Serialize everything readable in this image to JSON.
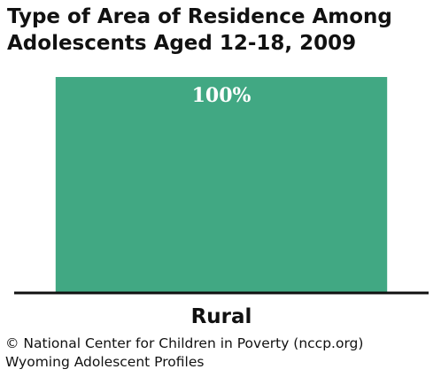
{
  "chart_data": {
    "type": "bar",
    "title_lines": [
      "Type of Area of Residence Among",
      "Adolescents Aged 12-18, 2009"
    ],
    "categories": [
      "Rural"
    ],
    "values": [
      100
    ],
    "data_labels": [
      "100%"
    ],
    "ylim": [
      0,
      100
    ],
    "grid": false,
    "bar_color": "#41a883",
    "label_color": "#ffffff"
  },
  "footer": {
    "source": "© National Center for Children in Poverty (nccp.org)",
    "profile": "Wyoming Adolescent Profiles"
  }
}
